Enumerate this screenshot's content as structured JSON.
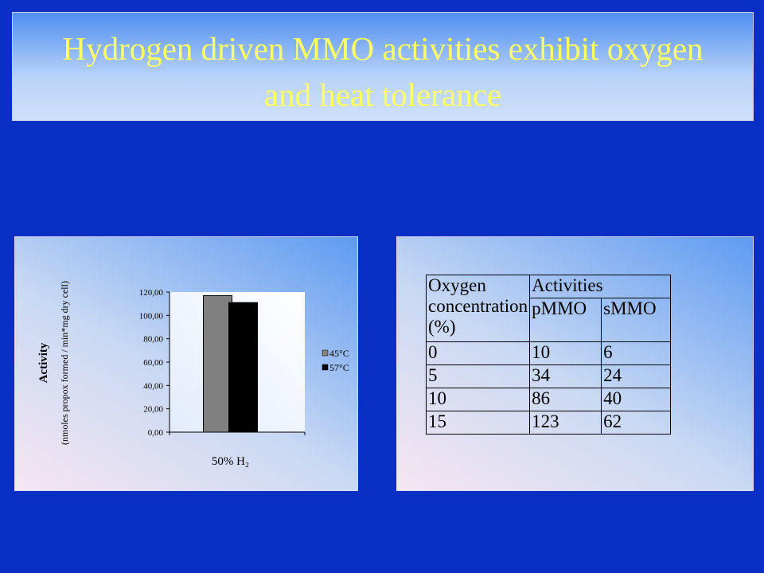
{
  "title": "Hydrogen driven MMO activities exhibit oxygen and heat tolerance",
  "chart_data": {
    "type": "bar",
    "y_label": "Activity",
    "y_sublabel": "(nmoles propox formed / min*mg dry cell)",
    "categories": [
      "50% H₂"
    ],
    "series": [
      {
        "name": "45°C",
        "color": "#808080",
        "values": [
          117
        ]
      },
      {
        "name": "57°C",
        "color": "#000000",
        "values": [
          111
        ]
      }
    ],
    "ylim": [
      0,
      120
    ],
    "yticks": [
      {
        "value": 0,
        "label": "0,00"
      },
      {
        "value": 20,
        "label": "20,00"
      },
      {
        "value": 40,
        "label": "40,00"
      },
      {
        "value": 60,
        "label": "60,00"
      },
      {
        "value": 80,
        "label": "80,00"
      },
      {
        "value": 100,
        "label": "100,00"
      },
      {
        "value": 120,
        "label": "120,00"
      }
    ],
    "legend": "right"
  },
  "table": {
    "header": [
      "Oxygen concentration (%)",
      "Activities"
    ],
    "subheader": [
      "pMMO",
      "sMMO"
    ],
    "rows": [
      [
        0,
        10,
        6
      ],
      [
        5,
        34,
        24
      ],
      [
        10,
        86,
        40
      ],
      [
        15,
        123,
        62
      ]
    ]
  }
}
